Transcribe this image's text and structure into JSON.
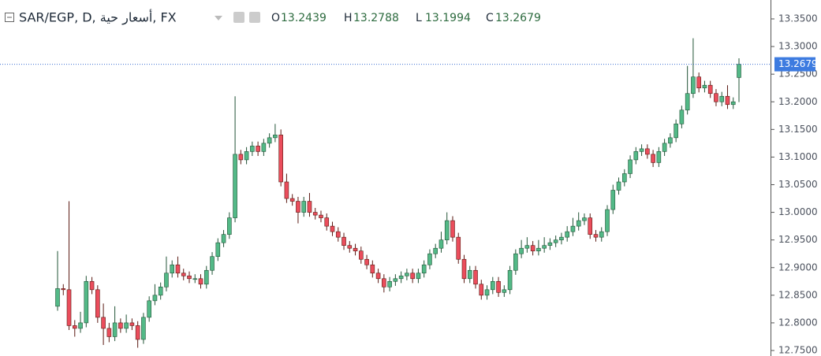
{
  "chart_data": {
    "type": "candlestick",
    "title": "SAR/EGP, D, أسعار حية, FX",
    "ohlc_labels": [
      "O",
      "H",
      "L",
      "C"
    ],
    "up_color": "#53b987",
    "down_color": "#eb4d5c",
    "ylim": [
      12.75,
      13.35
    ],
    "yticks": [
      {
        "value": 12.75,
        "label": "12.7500"
      },
      {
        "value": 12.8,
        "label": "12.8000"
      },
      {
        "value": 12.85,
        "label": "12.8500"
      },
      {
        "value": 12.9,
        "label": "12.9000"
      },
      {
        "value": 12.95,
        "label": "12.9500"
      },
      {
        "value": 13.0,
        "label": "13.0000"
      },
      {
        "value": 13.05,
        "label": "13.0500"
      },
      {
        "value": 13.1,
        "label": "13.1000"
      },
      {
        "value": 13.15,
        "label": "13.1500"
      },
      {
        "value": 13.2,
        "label": "13.2000"
      },
      {
        "value": 13.25,
        "label": "13.2500"
      },
      {
        "value": 13.3,
        "label": "13.3000"
      },
      {
        "value": 13.35,
        "label": "13.3500"
      }
    ],
    "open": [
      12.83,
      12.862,
      12.86,
      12.795,
      12.79,
      12.8,
      12.875,
      12.86,
      12.81,
      12.79,
      12.775,
      12.8,
      12.79,
      12.8,
      12.795,
      12.77,
      12.81,
      12.84,
      12.85,
      12.865,
      12.89,
      12.905,
      12.89,
      12.885,
      12.88,
      12.88,
      12.87,
      12.895,
      12.92,
      12.945,
      12.96,
      12.99,
      13.105,
      13.095,
      13.11,
      13.12,
      13.11,
      13.125,
      13.135,
      13.14,
      13.055,
      13.025,
      13.02,
      13.0,
      13.02,
      13.0,
      12.995,
      12.99,
      12.975,
      12.965,
      12.955,
      12.94,
      12.935,
      12.93,
      12.915,
      12.905,
      12.89,
      12.88,
      12.865,
      12.875,
      12.88,
      12.885,
      12.89,
      12.88,
      12.89,
      12.905,
      12.925,
      12.935,
      12.95,
      12.985,
      12.955,
      12.915,
      12.88,
      12.895,
      12.87,
      12.85,
      12.86,
      12.875,
      12.855,
      12.86,
      12.895,
      12.925,
      12.935,
      12.94,
      12.93,
      12.935,
      12.94,
      12.945,
      12.95,
      12.955,
      12.965,
      12.975,
      12.985,
      12.99,
      12.96,
      12.955,
      12.965,
      13.005,
      13.04,
      13.055,
      13.07,
      13.095,
      13.11,
      13.115,
      13.105,
      13.09,
      13.11,
      13.125,
      13.135,
      13.16,
      13.185,
      13.215,
      13.245,
      13.225,
      13.23,
      13.215,
      13.2,
      13.21,
      13.195,
      13.2439
    ],
    "high": [
      12.93,
      12.87,
      13.02,
      12.805,
      12.82,
      12.885,
      12.883,
      12.868,
      12.835,
      12.8,
      12.83,
      12.808,
      12.815,
      12.808,
      12.803,
      12.818,
      12.848,
      12.87,
      12.873,
      12.92,
      12.913,
      12.92,
      12.898,
      12.893,
      12.888,
      12.888,
      12.903,
      12.928,
      12.953,
      12.968,
      13.0,
      13.21,
      13.113,
      13.118,
      13.128,
      13.128,
      13.133,
      13.143,
      13.16,
      13.15,
      13.07,
      13.033,
      13.028,
      13.028,
      13.035,
      13.008,
      13.003,
      12.998,
      12.983,
      12.973,
      12.963,
      12.948,
      12.943,
      12.938,
      12.923,
      12.913,
      12.898,
      12.888,
      12.883,
      12.888,
      12.893,
      12.898,
      12.898,
      12.898,
      12.913,
      12.933,
      12.943,
      12.965,
      13.0,
      12.993,
      12.963,
      12.923,
      12.903,
      12.903,
      12.878,
      12.868,
      12.883,
      12.883,
      12.868,
      12.903,
      12.933,
      12.95,
      12.955,
      12.948,
      12.95,
      12.955,
      12.953,
      12.958,
      12.963,
      12.975,
      12.99,
      13.0,
      12.998,
      12.998,
      12.968,
      12.973,
      13.013,
      13.05,
      13.063,
      13.078,
      13.103,
      13.118,
      13.123,
      13.123,
      13.113,
      13.118,
      13.133,
      13.143,
      13.168,
      13.193,
      13.265,
      13.315,
      13.253,
      13.238,
      13.238,
      13.223,
      13.218,
      13.23,
      13.208,
      13.2788
    ],
    "low": [
      12.822,
      12.85,
      12.787,
      12.775,
      12.782,
      12.792,
      12.852,
      12.8,
      12.76,
      12.765,
      12.767,
      12.782,
      12.782,
      12.787,
      12.755,
      12.762,
      12.802,
      12.832,
      12.842,
      12.857,
      12.882,
      12.882,
      12.877,
      12.872,
      12.872,
      12.862,
      12.862,
      12.887,
      12.912,
      12.937,
      12.952,
      12.982,
      13.087,
      13.087,
      13.102,
      13.102,
      13.102,
      13.117,
      13.127,
      13.047,
      13.017,
      13.012,
      12.98,
      12.992,
      12.992,
      12.987,
      12.982,
      12.967,
      12.957,
      12.947,
      12.932,
      12.927,
      12.922,
      12.907,
      12.897,
      12.882,
      12.872,
      12.855,
      12.857,
      12.867,
      12.872,
      12.877,
      12.872,
      12.872,
      12.882,
      12.897,
      12.917,
      12.927,
      12.942,
      12.947,
      12.907,
      12.872,
      12.872,
      12.862,
      12.842,
      12.842,
      12.852,
      12.847,
      12.847,
      12.852,
      12.887,
      12.917,
      12.927,
      12.922,
      12.922,
      12.927,
      12.932,
      12.937,
      12.942,
      12.947,
      12.957,
      12.967,
      12.977,
      12.952,
      12.947,
      12.947,
      12.957,
      12.997,
      13.032,
      13.047,
      13.062,
      13.087,
      13.102,
      13.097,
      13.082,
      13.082,
      13.102,
      13.117,
      13.127,
      13.152,
      13.177,
      13.207,
      13.217,
      13.217,
      13.207,
      13.192,
      13.192,
      13.187,
      13.187,
      13.1994
    ],
    "close": [
      12.862,
      12.86,
      12.795,
      12.79,
      12.8,
      12.875,
      12.86,
      12.81,
      12.79,
      12.775,
      12.8,
      12.79,
      12.8,
      12.795,
      12.77,
      12.81,
      12.84,
      12.85,
      12.865,
      12.89,
      12.905,
      12.89,
      12.885,
      12.88,
      12.88,
      12.87,
      12.895,
      12.92,
      12.945,
      12.96,
      12.99,
      13.105,
      13.095,
      13.11,
      13.12,
      13.11,
      13.125,
      13.135,
      13.14,
      13.055,
      13.025,
      13.02,
      13.0,
      13.02,
      13.0,
      12.995,
      12.99,
      12.975,
      12.965,
      12.955,
      12.94,
      12.935,
      12.93,
      12.915,
      12.905,
      12.89,
      12.88,
      12.865,
      12.875,
      12.88,
      12.885,
      12.89,
      12.88,
      12.89,
      12.905,
      12.925,
      12.935,
      12.95,
      12.985,
      12.955,
      12.915,
      12.88,
      12.895,
      12.87,
      12.85,
      12.86,
      12.875,
      12.855,
      12.86,
      12.895,
      12.925,
      12.935,
      12.94,
      12.93,
      12.935,
      12.94,
      12.945,
      12.95,
      12.955,
      12.965,
      12.975,
      12.985,
      12.99,
      12.96,
      12.955,
      12.965,
      13.005,
      13.04,
      13.055,
      13.07,
      13.095,
      13.11,
      13.115,
      13.105,
      13.09,
      13.11,
      13.125,
      13.135,
      13.16,
      13.185,
      13.215,
      13.245,
      13.225,
      13.23,
      13.215,
      13.2,
      13.21,
      13.195,
      13.2,
      13.2679
    ]
  }
}
